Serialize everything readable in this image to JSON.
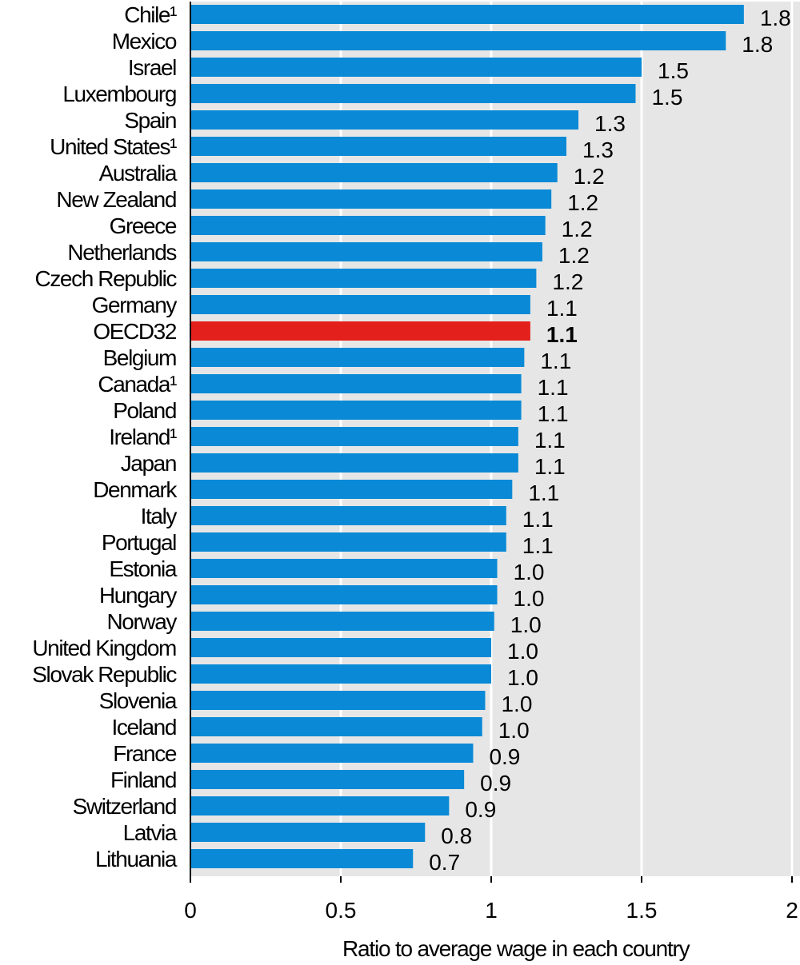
{
  "chart_data": {
    "type": "bar",
    "orientation": "horizontal",
    "categories": [
      "Chile¹",
      "Mexico",
      "Israel",
      "Luxembourg",
      "Spain",
      "United States¹",
      "Australia",
      "New Zealand",
      "Greece",
      "Netherlands",
      "Czech Republic",
      "Germany",
      "OECD32",
      "Belgium",
      "Canada¹",
      "Poland",
      "Ireland¹",
      "Japan",
      "Denmark",
      "Italy",
      "Portugal",
      "Estonia",
      "Hungary",
      "Norway",
      "United Kingdom",
      "Slovak Republic",
      "Slovenia",
      "Iceland",
      "France",
      "Finland",
      "Switzerland",
      "Latvia",
      "Lithuania"
    ],
    "values": [
      1.84,
      1.78,
      1.5,
      1.48,
      1.29,
      1.25,
      1.22,
      1.2,
      1.18,
      1.17,
      1.15,
      1.13,
      1.13,
      1.11,
      1.1,
      1.1,
      1.09,
      1.09,
      1.07,
      1.05,
      1.05,
      1.02,
      1.02,
      1.01,
      1.0,
      1.0,
      0.98,
      0.97,
      0.94,
      0.91,
      0.86,
      0.78,
      0.74
    ],
    "labels": [
      "1.8",
      "1.8",
      "1.5",
      "1.5",
      "1.3",
      "1.3",
      "1.2",
      "1.2",
      "1.2",
      "1.2",
      "1.2",
      "1.1",
      "1.1",
      "1.1",
      "1.1",
      "1.1",
      "1.1",
      "1.1",
      "1.1",
      "1.1",
      "1.1",
      "1.0",
      "1.0",
      "1.0",
      "1.0",
      "1.0",
      "1.0",
      "1.0",
      "0.9",
      "0.9",
      "0.9",
      "0.8",
      "0.7"
    ],
    "highlight": "OECD32",
    "xlim": [
      0,
      2
    ],
    "xticks": [
      0,
      0.5,
      1,
      1.5,
      2
    ],
    "xtick_labels": [
      "0",
      "0.5",
      "1",
      "1.5",
      "2"
    ],
    "xlabel": "Ratio to average wage in each country",
    "ylabel": "",
    "title": "",
    "grid": true,
    "colors": {
      "bar": "#0a8ad6",
      "highlight": "#e3201b",
      "plot_background": "#e6e6e6",
      "gridline": "#ffffff",
      "axis": "#000000"
    }
  }
}
